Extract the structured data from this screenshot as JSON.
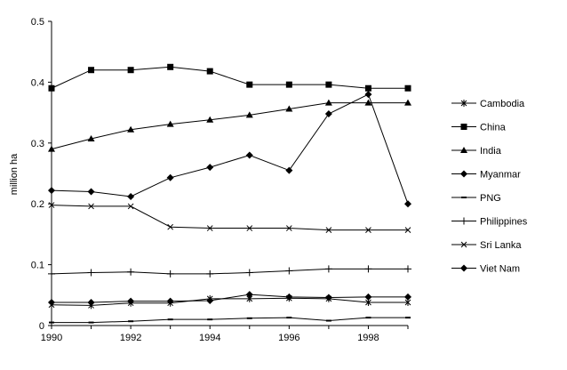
{
  "chart_data": {
    "type": "line",
    "title": "",
    "xlabel": "",
    "ylabel": "million ha",
    "xlim": [
      1990,
      1999
    ],
    "ylim": [
      0,
      0.5
    ],
    "x_ticks": [
      "1990",
      "1992",
      "1994",
      "1996",
      "1998"
    ],
    "y_ticks": [
      "0",
      "0.1",
      "0.2",
      "0.3",
      "0.4",
      "0.5"
    ],
    "grid": false,
    "legend_position": "right",
    "x": [
      1990,
      1991,
      1992,
      1993,
      1994,
      1995,
      1996,
      1997,
      1998,
      1999
    ],
    "series": [
      {
        "name": "Cambodia",
        "marker": "asterisk",
        "values": [
          0.034,
          0.033,
          0.037,
          0.037,
          0.044,
          0.044,
          0.045,
          0.044,
          0.038,
          0.038
        ]
      },
      {
        "name": "China",
        "marker": "square",
        "values": [
          0.39,
          0.42,
          0.42,
          0.425,
          0.418,
          0.396,
          0.396,
          0.396,
          0.39,
          0.39
        ]
      },
      {
        "name": "India",
        "marker": "triangle",
        "values": [
          0.29,
          0.307,
          0.322,
          0.331,
          0.338,
          0.346,
          0.356,
          0.366,
          0.366,
          0.366
        ]
      },
      {
        "name": "Myanmar",
        "marker": "diamond",
        "values": [
          0.038,
          0.038,
          0.04,
          0.04,
          0.041,
          0.051,
          0.047,
          0.046,
          0.047,
          0.047
        ]
      },
      {
        "name": "PNG",
        "marker": "dash",
        "values": [
          0.005,
          0.005,
          0.007,
          0.01,
          0.01,
          0.012,
          0.013,
          0.008,
          0.013,
          0.013
        ]
      },
      {
        "name": "Philippines",
        "marker": "plus",
        "values": [
          0.085,
          0.087,
          0.088,
          0.085,
          0.085,
          0.087,
          0.09,
          0.093,
          0.093,
          0.093
        ]
      },
      {
        "name": "Sri Lanka",
        "marker": "x",
        "values": [
          0.198,
          0.196,
          0.196,
          0.162,
          0.16,
          0.16,
          0.16,
          0.157,
          0.157,
          0.157
        ]
      },
      {
        "name": "Viet Nam",
        "marker": "diamond",
        "values": [
          0.222,
          0.22,
          0.212,
          0.243,
          0.26,
          0.28,
          0.255,
          0.348,
          0.38,
          0.2
        ]
      }
    ]
  }
}
